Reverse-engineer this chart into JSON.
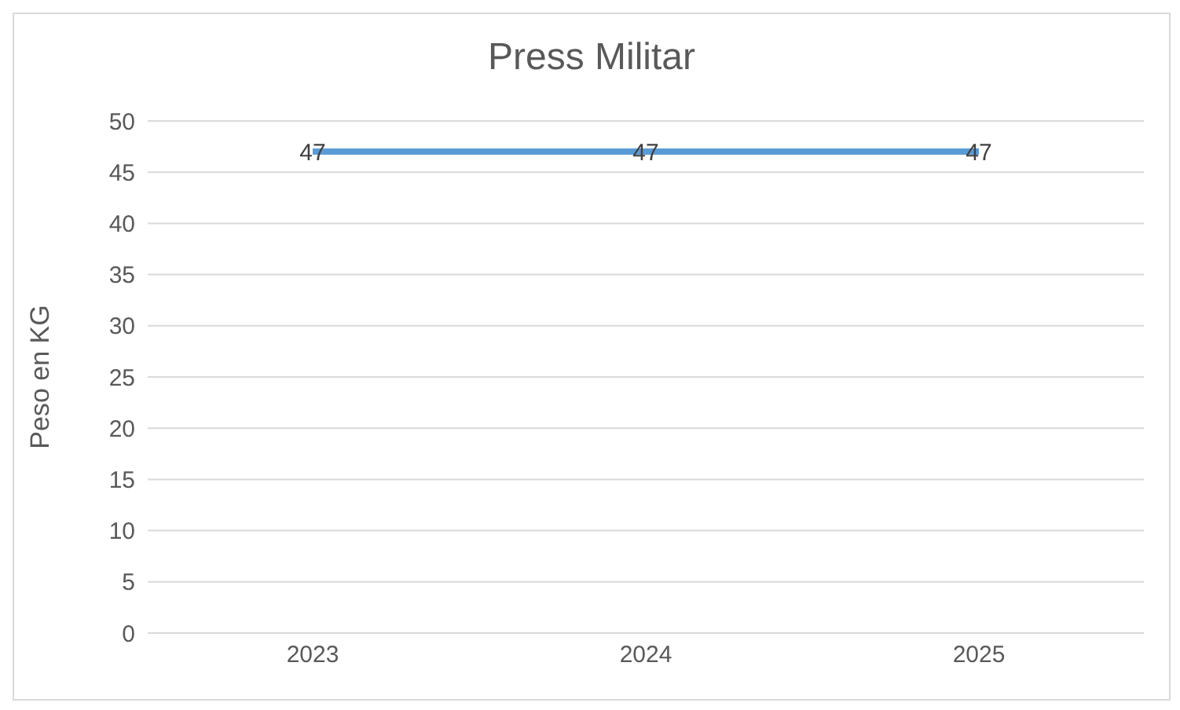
{
  "chart_data": {
    "type": "line",
    "title": "Press Militar",
    "ylabel": "Peso en KG",
    "categories": [
      "2023",
      "2024",
      "2025"
    ],
    "series": [
      {
        "color": "#5b9bd5",
        "values": [
          47,
          47,
          47
        ]
      }
    ],
    "ylim": [
      0,
      50
    ],
    "yticks": [
      0,
      5,
      10,
      15,
      20,
      25,
      30,
      35,
      40,
      45,
      50
    ],
    "grid": "y",
    "legend": false,
    "marker": "none",
    "line_style": "solid",
    "data_labels": true
  }
}
